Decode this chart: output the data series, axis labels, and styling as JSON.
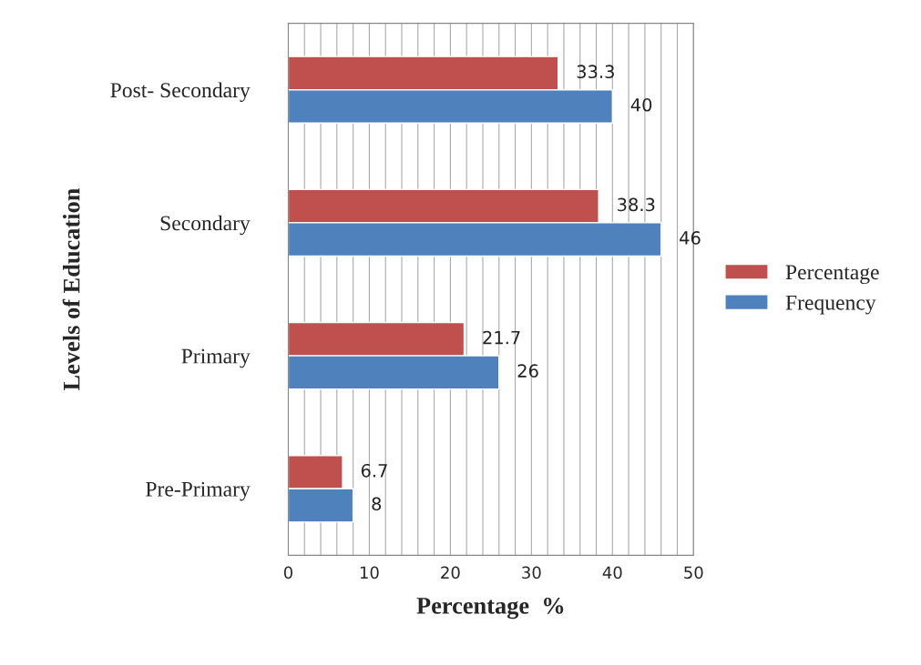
{
  "chart_data": {
    "type": "bar",
    "orientation": "horizontal",
    "xlabel": "Percentage  %",
    "ylabel": "Levels of Education",
    "categories": [
      "Post- Secondary",
      "Secondary",
      "Primary",
      "Pre-Primary"
    ],
    "series": [
      {
        "name": "Percentage",
        "color": "#c0504d",
        "values": [
          33.3,
          38.3,
          21.7,
          6.7
        ]
      },
      {
        "name": "Frequency",
        "color": "#4f81bd",
        "values": [
          40,
          46,
          26,
          8
        ]
      }
    ],
    "xlim": [
      0,
      50
    ],
    "xticks": [
      0,
      {
        "value": 2,
        "label": null
      },
      {
        "value": 4,
        "label": null
      },
      {
        "value": 6,
        "label": null
      },
      {
        "value": 8,
        "label": null
      },
      10,
      {
        "value": 12,
        "label": null
      },
      {
        "value": 14,
        "label": null
      },
      {
        "value": 16,
        "label": null
      },
      {
        "value": 18,
        "label": null
      },
      20,
      {
        "value": 22,
        "label": null
      },
      {
        "value": 24,
        "label": null
      },
      {
        "value": 26,
        "label": null
      },
      {
        "value": 28,
        "label": null
      },
      30,
      {
        "value": 32,
        "label": null
      },
      {
        "value": 34,
        "label": null
      },
      {
        "value": 36,
        "label": null
      },
      {
        "value": 38,
        "label": null
      },
      40,
      {
        "value": 42,
        "label": null
      },
      {
        "value": 44,
        "label": null
      },
      {
        "value": 46,
        "label": null
      },
      {
        "value": 48,
        "label": null
      },
      50
    ],
    "grid": "x",
    "legend": "right",
    "data_labels": true
  }
}
